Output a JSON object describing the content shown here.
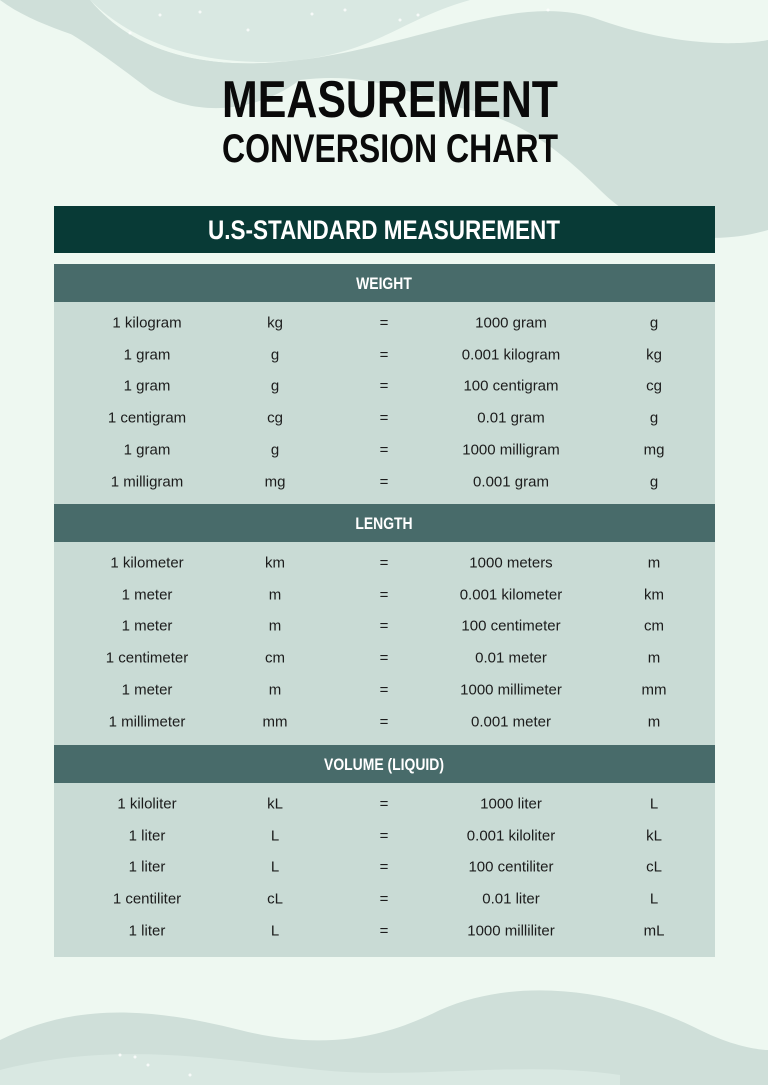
{
  "title": {
    "line1": "MEASUREMENT",
    "line2": "CONVERSION CHART"
  },
  "colors": {
    "background": "#eef8f1",
    "wave": "#cfdfd9",
    "banner": "#083a36",
    "section_header": "#486b6a",
    "table_body": "#c9dbd5"
  },
  "banner": "U.S-STANDARD MEASUREMENT",
  "sections": [
    {
      "heading": "WEIGHT",
      "rows": [
        [
          "1 kilogram",
          "kg",
          "=",
          "1000 gram",
          "g"
        ],
        [
          "1 gram",
          "g",
          "=",
          "0.001 kilogram",
          "kg"
        ],
        [
          "1 gram",
          "g",
          "=",
          "100 centigram",
          "cg"
        ],
        [
          "1 centigram",
          "cg",
          "=",
          "0.01 gram",
          "g"
        ],
        [
          "1 gram",
          "g",
          "=",
          "1000 milligram",
          "mg"
        ],
        [
          "1 milligram",
          "mg",
          "=",
          "0.001 gram",
          "g"
        ]
      ]
    },
    {
      "heading": "LENGTH",
      "rows": [
        [
          "1 kilometer",
          "km",
          "=",
          "1000 meters",
          "m"
        ],
        [
          "1 meter",
          "m",
          "=",
          "0.001 kilometer",
          "km"
        ],
        [
          "1 meter",
          "m",
          "=",
          "100 centimeter",
          "cm"
        ],
        [
          "1 centimeter",
          "cm",
          "=",
          "0.01 meter",
          "m"
        ],
        [
          "1 meter",
          "m",
          "=",
          "1000 millimeter",
          "mm"
        ],
        [
          "1 millimeter",
          "mm",
          "=",
          "0.001 meter",
          "m"
        ]
      ]
    },
    {
      "heading": "VOLUME (LIQUID)",
      "rows": [
        [
          "1 kiloliter",
          "kL",
          "=",
          "1000 liter",
          "L"
        ],
        [
          "1 liter",
          "L",
          "=",
          "0.001 kiloliter",
          "kL"
        ],
        [
          "1 liter",
          "L",
          "=",
          "100 centiliter",
          "cL"
        ],
        [
          "1 centiliter",
          "cL",
          "=",
          "0.01 liter",
          "L"
        ],
        [
          "1 liter",
          "L",
          "=",
          "1000 milliliter",
          "mL"
        ]
      ]
    }
  ]
}
